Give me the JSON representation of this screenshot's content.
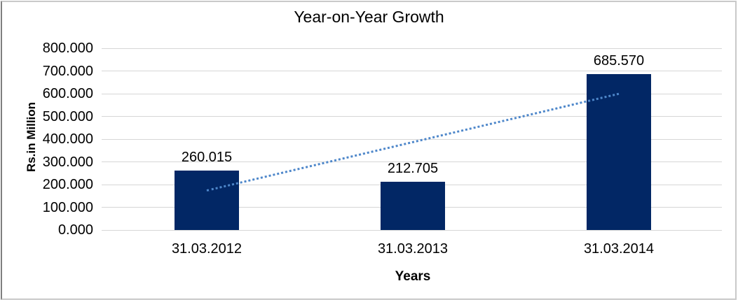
{
  "chart_data": {
    "type": "bar",
    "title": "Year-on-Year Growth",
    "xlabel": "Years",
    "ylabel": "Rs.in Million",
    "categories": [
      "31.03.2012",
      "31.03.2013",
      "31.03.2014"
    ],
    "values": [
      260.015,
      212.705,
      685.57
    ],
    "data_labels": [
      "260.015",
      "212.705",
      "685.570"
    ],
    "y_ticks": [
      "800.000",
      "700.000",
      "600.000",
      "500.000",
      "400.000",
      "300.000",
      "200.000",
      "100.000",
      "0.000"
    ],
    "ylim": [
      0,
      800
    ],
    "grid": "horizontal",
    "legend": "none",
    "trendline": {
      "type": "linear",
      "style": "dotted",
      "start_value": 173.3,
      "end_value": 598.9,
      "color": "#4e87ca"
    },
    "colors": {
      "bar": "#022765",
      "gridline": "#d6d6d6",
      "text": "#000000",
      "background": "#ffffff",
      "frame": "#c9c9c9"
    }
  }
}
